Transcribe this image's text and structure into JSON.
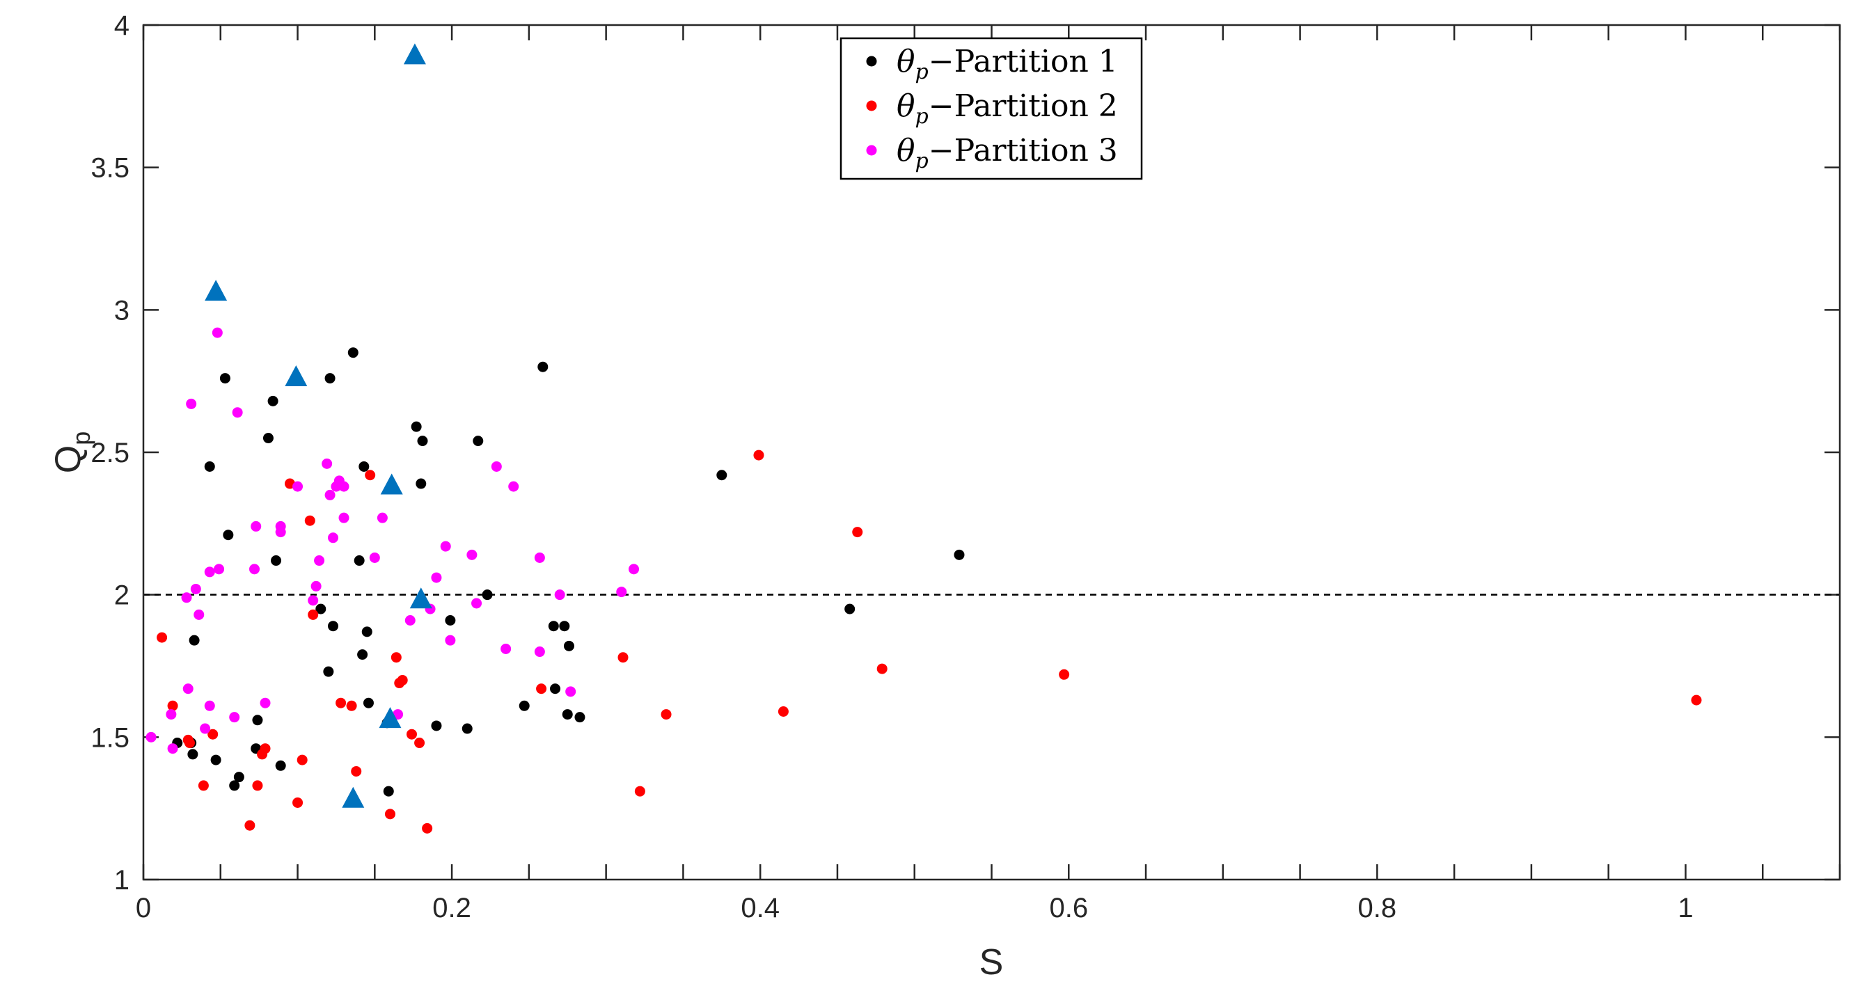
{
  "chart_data": {
    "type": "scatter",
    "xlabel": "S",
    "ylabel": {
      "main": "Q",
      "subscript": "p"
    },
    "xlim": [
      0,
      1.1
    ],
    "ylim": [
      1,
      4
    ],
    "xticks": [
      0,
      0.2,
      0.4,
      0.6,
      0.8,
      1
    ],
    "xtick_labels": [
      "0",
      "0.2",
      "0.4",
      "0.6",
      "0.8",
      "1"
    ],
    "yticks": [
      1,
      1.5,
      2,
      2.5,
      3,
      3.5,
      4
    ],
    "ytick_labels": [
      "1",
      "1.5",
      "2",
      "2.5",
      "3",
      "3.5",
      "4"
    ],
    "grid": false,
    "legend_placement": "top-center",
    "reference_line": {
      "y": 2,
      "style": "dashed",
      "color": "#000000"
    },
    "series": [
      {
        "name": "Partition 1",
        "legend_symbol": "θ",
        "legend_symbol_sub": "p",
        "legend_dash": "−",
        "legend_text": "Partition 1",
        "color": "#000000",
        "marker": "circle",
        "points": [
          [
            0.022,
            1.48
          ],
          [
            0.031,
            1.48
          ],
          [
            0.032,
            1.44
          ],
          [
            0.033,
            1.84
          ],
          [
            0.043,
            2.45
          ],
          [
            0.047,
            1.42
          ],
          [
            0.053,
            2.76
          ],
          [
            0.055,
            2.21
          ],
          [
            0.059,
            1.33
          ],
          [
            0.062,
            1.36
          ],
          [
            0.073,
            1.46
          ],
          [
            0.074,
            1.56
          ],
          [
            0.081,
            2.55
          ],
          [
            0.084,
            2.68
          ],
          [
            0.086,
            2.12
          ],
          [
            0.089,
            1.4
          ],
          [
            0.115,
            1.95
          ],
          [
            0.12,
            1.73
          ],
          [
            0.121,
            2.76
          ],
          [
            0.123,
            1.89
          ],
          [
            0.136,
            2.85
          ],
          [
            0.14,
            2.12
          ],
          [
            0.142,
            1.79
          ],
          [
            0.143,
            2.45
          ],
          [
            0.145,
            1.87
          ],
          [
            0.146,
            1.62
          ],
          [
            0.158,
            1.55
          ],
          [
            0.159,
            1.31
          ],
          [
            0.177,
            2.59
          ],
          [
            0.18,
            2.39
          ],
          [
            0.181,
            2.54
          ],
          [
            0.19,
            1.54
          ],
          [
            0.199,
            1.91
          ],
          [
            0.21,
            1.53
          ],
          [
            0.217,
            2.54
          ],
          [
            0.223,
            2.0
          ],
          [
            0.247,
            1.61
          ],
          [
            0.259,
            2.8
          ],
          [
            0.266,
            1.89
          ],
          [
            0.267,
            1.67
          ],
          [
            0.273,
            1.89
          ],
          [
            0.275,
            1.58
          ],
          [
            0.276,
            1.82
          ],
          [
            0.283,
            1.57
          ],
          [
            0.375,
            2.42
          ],
          [
            0.458,
            1.95
          ],
          [
            0.529,
            2.14
          ]
        ]
      },
      {
        "name": "Partition 2",
        "legend_symbol": "θ",
        "legend_symbol_sub": "p",
        "legend_dash": "−",
        "legend_text": "Partition 2",
        "color": "#ff0000",
        "marker": "circle",
        "points": [
          [
            0.012,
            1.85
          ],
          [
            0.019,
            1.61
          ],
          [
            0.029,
            1.49
          ],
          [
            0.03,
            1.48
          ],
          [
            0.039,
            1.33
          ],
          [
            0.045,
            1.51
          ],
          [
            0.069,
            1.19
          ],
          [
            0.074,
            1.33
          ],
          [
            0.077,
            1.44
          ],
          [
            0.079,
            1.46
          ],
          [
            0.095,
            2.39
          ],
          [
            0.1,
            1.27
          ],
          [
            0.103,
            1.42
          ],
          [
            0.108,
            2.26
          ],
          [
            0.11,
            1.93
          ],
          [
            0.128,
            1.62
          ],
          [
            0.135,
            1.61
          ],
          [
            0.138,
            1.38
          ],
          [
            0.147,
            2.42
          ],
          [
            0.16,
            1.23
          ],
          [
            0.164,
            1.78
          ],
          [
            0.166,
            1.69
          ],
          [
            0.168,
            1.7
          ],
          [
            0.174,
            1.51
          ],
          [
            0.179,
            1.48
          ],
          [
            0.184,
            1.18
          ],
          [
            0.258,
            1.67
          ],
          [
            0.311,
            1.78
          ],
          [
            0.322,
            1.31
          ],
          [
            0.339,
            1.58
          ],
          [
            0.399,
            2.49
          ],
          [
            0.415,
            1.59
          ],
          [
            0.463,
            2.22
          ],
          [
            0.479,
            1.74
          ],
          [
            0.597,
            1.72
          ],
          [
            1.007,
            1.63
          ]
        ]
      },
      {
        "name": "Partition 3",
        "legend_symbol": "θ",
        "legend_symbol_sub": "p",
        "legend_dash": "−",
        "legend_text": "Partition 3",
        "color": "#ff00ff",
        "marker": "circle",
        "points": [
          [
            0.005,
            1.5
          ],
          [
            0.018,
            1.58
          ],
          [
            0.019,
            1.46
          ],
          [
            0.028,
            1.99
          ],
          [
            0.029,
            1.67
          ],
          [
            0.031,
            2.67
          ],
          [
            0.034,
            2.02
          ],
          [
            0.036,
            1.93
          ],
          [
            0.04,
            1.53
          ],
          [
            0.043,
            1.61
          ],
          [
            0.043,
            2.08
          ],
          [
            0.048,
            2.92
          ],
          [
            0.049,
            2.09
          ],
          [
            0.059,
            1.57
          ],
          [
            0.061,
            2.64
          ],
          [
            0.072,
            2.09
          ],
          [
            0.073,
            2.24
          ],
          [
            0.079,
            1.62
          ],
          [
            0.089,
            2.22
          ],
          [
            0.089,
            2.24
          ],
          [
            0.1,
            2.38
          ],
          [
            0.11,
            1.98
          ],
          [
            0.112,
            2.03
          ],
          [
            0.114,
            2.12
          ],
          [
            0.119,
            2.46
          ],
          [
            0.121,
            2.35
          ],
          [
            0.123,
            2.2
          ],
          [
            0.125,
            2.38
          ],
          [
            0.127,
            2.4
          ],
          [
            0.13,
            2.38
          ],
          [
            0.13,
            2.27
          ],
          [
            0.155,
            2.27
          ],
          [
            0.15,
            2.13
          ],
          [
            0.165,
            1.58
          ],
          [
            0.173,
            1.91
          ],
          [
            0.186,
            1.95
          ],
          [
            0.19,
            2.06
          ],
          [
            0.196,
            2.17
          ],
          [
            0.199,
            1.84
          ],
          [
            0.213,
            2.14
          ],
          [
            0.216,
            1.97
          ],
          [
            0.229,
            2.45
          ],
          [
            0.235,
            1.81
          ],
          [
            0.24,
            2.38
          ],
          [
            0.257,
            2.13
          ],
          [
            0.257,
            1.8
          ],
          [
            0.27,
            2.0
          ],
          [
            0.277,
            1.66
          ],
          [
            0.31,
            2.01
          ],
          [
            0.318,
            2.09
          ]
        ]
      },
      {
        "name": "",
        "color": "#0072bd",
        "marker": "triangle",
        "points": [
          [
            0.047,
            3.06
          ],
          [
            0.099,
            2.76
          ],
          [
            0.136,
            1.28
          ],
          [
            0.16,
            1.56
          ],
          [
            0.161,
            2.38
          ],
          [
            0.176,
            3.89
          ],
          [
            0.18,
            1.98
          ]
        ]
      }
    ]
  }
}
